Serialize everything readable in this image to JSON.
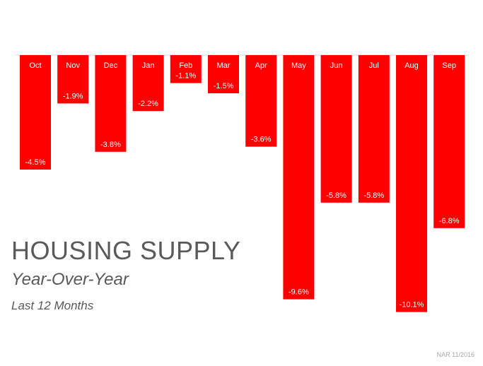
{
  "header": {
    "title": "HOUSING SUPPLY",
    "subtitle": "Year-Over-Year",
    "period": "Last 12 Months"
  },
  "footer": {
    "source": "NAR 11/2016"
  },
  "colors": {
    "bar": "#ff0000",
    "axis": "#d9d9d9",
    "text": "#595959",
    "source": "#a6a6a6"
  },
  "chart_data": {
    "type": "bar",
    "categories": [
      "Oct",
      "Nov",
      "Dec",
      "Jan",
      "Feb",
      "Mar",
      "Apr",
      "May",
      "Jun",
      "Jul",
      "Aug",
      "Sep"
    ],
    "values": [
      -4.5,
      -1.9,
      -3.8,
      -2.2,
      -1.1,
      -1.5,
      -3.6,
      -9.6,
      -5.8,
      -5.8,
      -10.1,
      -6.8
    ],
    "value_labels": [
      "-4.5%",
      "-1.9%",
      "-3.8%",
      "-2.2%",
      "-1.1%",
      "-1.5%",
      "-3.6%",
      "-9.6%",
      "-5.8%",
      "-5.8%",
      "-10.1%",
      "-6.8%"
    ],
    "title": "HOUSING SUPPLY",
    "subtitle": "Year-Over-Year",
    "xlabel": "",
    "ylabel": "",
    "ylim": [
      -10.1,
      0
    ],
    "grid": false,
    "legend": "none"
  }
}
